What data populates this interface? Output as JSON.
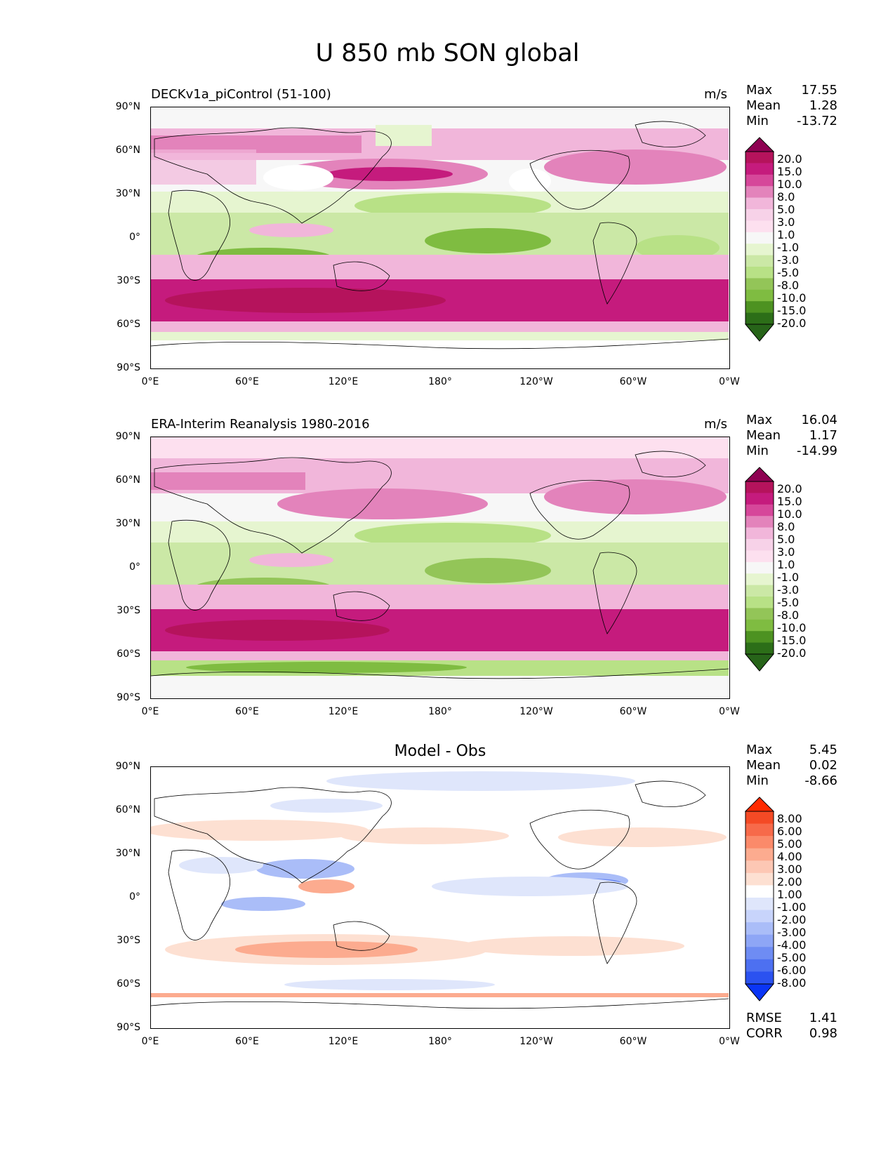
{
  "figure_title": "U 850 mb SON global",
  "y_ticks": [
    "90°N",
    "60°N",
    "30°N",
    "0°",
    "30°S",
    "60°S",
    "90°S"
  ],
  "x_ticks": [
    "0°E",
    "60°E",
    "120°E",
    "180°",
    "120°W",
    "60°W",
    "0°W"
  ],
  "panels": [
    {
      "title": "DECKv1a_piControl (51-100)",
      "units": "m/s",
      "stats": [
        {
          "label": "Max",
          "value": "17.55"
        },
        {
          "label": "Mean",
          "value": "1.28"
        },
        {
          "label": "Min",
          "value": "-13.72"
        }
      ],
      "colorbar_labels": [
        "20.0",
        "15.0",
        "10.0",
        "8.0",
        "5.0",
        "3.0",
        "1.0",
        "-1.0",
        "-3.0",
        "-5.0",
        "-8.0",
        "-10.0",
        "-15.0",
        "-20.0"
      ],
      "colors": [
        "#8e0152",
        "#b5135c",
        "#c51b7d",
        "#d6479a",
        "#e383bb",
        "#f1b6da",
        "#f7d2e8",
        "#fde0ef",
        "#f7f7f7",
        "#e6f5d0",
        "#cbe8a6",
        "#b8e186",
        "#93c558",
        "#7fbc41",
        "#4d9221",
        "#2c6e18",
        "#276419"
      ]
    },
    {
      "title": "ERA-Interim Reanalysis 1980-2016",
      "units": "m/s",
      "stats": [
        {
          "label": "Max",
          "value": "16.04"
        },
        {
          "label": "Mean",
          "value": "1.17"
        },
        {
          "label": "Min",
          "value": "-14.99"
        }
      ],
      "colorbar_labels": [
        "20.0",
        "15.0",
        "10.0",
        "8.0",
        "5.0",
        "3.0",
        "1.0",
        "-1.0",
        "-3.0",
        "-5.0",
        "-8.0",
        "-10.0",
        "-15.0",
        "-20.0"
      ],
      "colors": [
        "#8e0152",
        "#b5135c",
        "#c51b7d",
        "#d6479a",
        "#e383bb",
        "#f1b6da",
        "#f7d2e8",
        "#fde0ef",
        "#f7f7f7",
        "#e6f5d0",
        "#cbe8a6",
        "#b8e186",
        "#93c558",
        "#7fbc41",
        "#4d9221",
        "#2c6e18",
        "#276419"
      ]
    },
    {
      "title": "Model - Obs",
      "units": "",
      "stats": [
        {
          "label": "Max",
          "value": "5.45"
        },
        {
          "label": "Mean",
          "value": "0.02"
        },
        {
          "label": "Min",
          "value": "-8.66"
        }
      ],
      "colorbar_labels": [
        "8.00",
        "6.00",
        "5.00",
        "4.00",
        "3.00",
        "2.00",
        "1.00",
        "-1.00",
        "-2.00",
        "-3.00",
        "-4.00",
        "-5.00",
        "-6.00",
        "-8.00"
      ],
      "colors": [
        "#ff2a00",
        "#f44a25",
        "#f76a4a",
        "#fb8a6a",
        "#fcab8f",
        "#fdc7b4",
        "#fde0d2",
        "#ffffff",
        "#dfe6fb",
        "#c8d4fb",
        "#aabdf8",
        "#8ea6f6",
        "#6e8cf3",
        "#4d70f1",
        "#2b52f0",
        "#0a35f5"
      ],
      "extra_stats": [
        {
          "label": "RMSE",
          "value": "1.41"
        },
        {
          "label": "CORR",
          "value": "0.98"
        }
      ]
    }
  ]
}
